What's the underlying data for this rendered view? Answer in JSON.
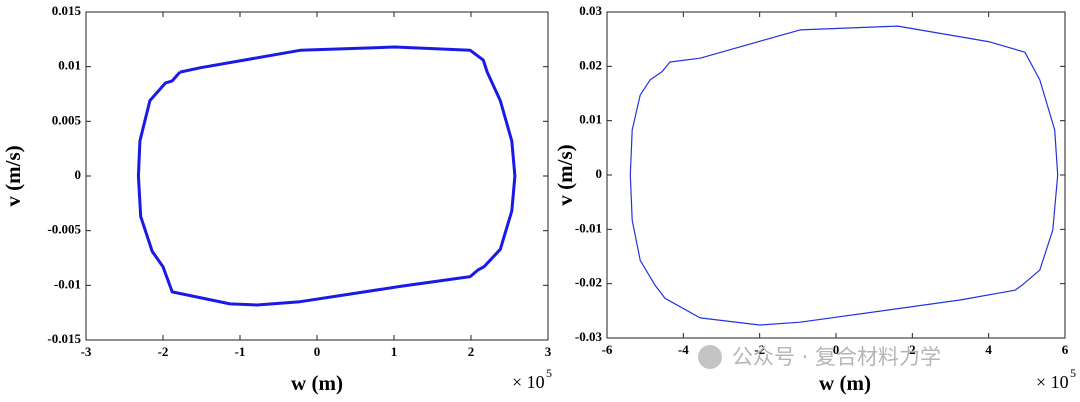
{
  "watermark": "公众号 · 复合材料力学",
  "chart_data": [
    {
      "type": "line",
      "x_label": "w (m)",
      "y_label": "v (m/s)",
      "x_multiplier": "× 10",
      "x_multiplier_exp": "5",
      "xlim": [
        -3,
        3
      ],
      "ylim": [
        -0.015,
        0.015
      ],
      "xticks": [
        -3,
        -2,
        -1,
        0,
        1,
        2,
        3
      ],
      "yticks": [
        -0.015,
        -0.01,
        -0.005,
        0,
        0.005,
        0.01,
        0.015
      ],
      "color": "#1a1ae6",
      "x": [
        -1.78,
        -1.88,
        -1.97,
        -2.17,
        -2.3,
        -2.32,
        -2.29,
        -2.14,
        -2.0,
        -1.88,
        -1.13,
        -0.78,
        -0.22,
        1.08,
        1.99,
        2.09,
        2.17,
        2.38,
        2.53,
        2.57,
        2.53,
        2.38,
        2.21,
        2.16,
        1.99,
        1.01,
        -0.22,
        -1.52,
        -1.78
      ],
      "values": [
        0.0095,
        0.0087,
        0.0085,
        0.0069,
        0.0032,
        0,
        -0.0037,
        -0.0069,
        -0.0083,
        -0.0106,
        -0.0117,
        -0.0118,
        -0.0115,
        -0.0101,
        -0.0092,
        -0.0086,
        -0.0083,
        -0.0067,
        -0.0032,
        0,
        0.0032,
        0.0069,
        0.0095,
        0.0106,
        0.0115,
        0.0118,
        0.0115,
        0.0099,
        0.0095
      ]
    },
    {
      "type": "line",
      "x_label": "w (m)",
      "y_label": "v (m/s)",
      "x_multiplier": "× 10",
      "x_multiplier_exp": "5",
      "xlim": [
        -6,
        6
      ],
      "ylim": [
        -0.03,
        0.03
      ],
      "xticks": [
        -6,
        -4,
        -2,
        0,
        2,
        4,
        6
      ],
      "yticks": [
        -0.03,
        -0.02,
        -0.01,
        0,
        0.01,
        0.02,
        0.03
      ],
      "color": "#2233dd",
      "x": [
        -4.56,
        -4.87,
        -5.13,
        -5.34,
        -5.39,
        -5.34,
        -5.13,
        -4.74,
        -4.48,
        -3.56,
        -2.0,
        -0.94,
        3.25,
        4.69,
        4.87,
        5.34,
        5.68,
        5.81,
        5.73,
        5.34,
        4.95,
        4.03,
        1.62,
        -0.94,
        -3.56,
        -4.35,
        -4.56
      ],
      "values": [
        0.019,
        0.0175,
        0.0147,
        0.0083,
        0,
        -0.0083,
        -0.0157,
        -0.0203,
        -0.0227,
        -0.0263,
        -0.0276,
        -0.0271,
        -0.023,
        -0.0212,
        -0.0203,
        -0.0175,
        -0.0101,
        0,
        0.0083,
        0.0175,
        0.0226,
        0.0245,
        0.0274,
        0.0267,
        0.0215,
        0.0208,
        0.019
      ]
    }
  ]
}
